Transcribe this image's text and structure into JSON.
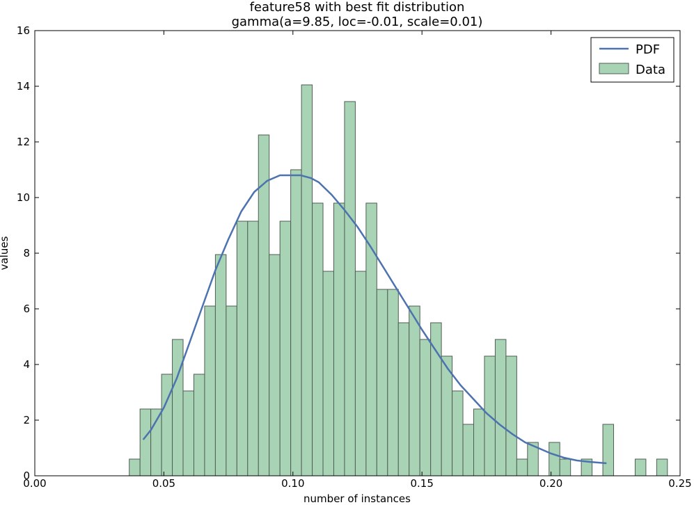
{
  "chart_data": {
    "type": "bar",
    "title": "feature58 with best fit distribution",
    "subtitle": "gamma(a=9.85, loc=-0.01, scale=0.01)",
    "xlabel": "number of instances",
    "ylabel": "values",
    "xlim": [
      0.0,
      0.25
    ],
    "ylim": [
      0,
      16
    ],
    "xticks": [
      0.0,
      0.05,
      0.1,
      0.15,
      0.2,
      0.25
    ],
    "xtick_labels": [
      "0.00",
      "0.05",
      "0.10",
      "0.15",
      "0.20",
      "0.25"
    ],
    "yticks": [
      0,
      2,
      4,
      6,
      8,
      10,
      12,
      14,
      16
    ],
    "ytick_labels": [
      "0",
      "2",
      "4",
      "6",
      "8",
      "10",
      "12",
      "14",
      "16"
    ],
    "grid": false,
    "legend_position": "top-right",
    "histogram": {
      "name": "Data",
      "color": "#a8d3b4",
      "edge_color": "#4f5e55",
      "bin_start": 0.0366,
      "bin_width": 0.00417,
      "counts": [
        0.6,
        2.4,
        2.4,
        3.65,
        4.9,
        3.05,
        3.65,
        6.1,
        7.95,
        6.1,
        9.15,
        9.15,
        12.25,
        7.95,
        9.15,
        11.0,
        14.05,
        9.8,
        7.35,
        9.8,
        13.45,
        7.35,
        9.8,
        6.7,
        6.7,
        5.5,
        6.1,
        4.9,
        5.5,
        4.3,
        3.05,
        1.85,
        2.4,
        4.3,
        4.9,
        4.3,
        0.6,
        1.2,
        0,
        1.2,
        0.6,
        0,
        0.6,
        0,
        1.85,
        0,
        0,
        0.6,
        0,
        0.6
      ]
    },
    "pdf": {
      "name": "PDF",
      "color": "#4c72b0",
      "x": [
        0.042,
        0.045,
        0.05,
        0.055,
        0.06,
        0.065,
        0.07,
        0.075,
        0.08,
        0.085,
        0.09,
        0.095,
        0.1,
        0.103,
        0.107,
        0.11,
        0.115,
        0.12,
        0.125,
        0.13,
        0.135,
        0.14,
        0.145,
        0.15,
        0.155,
        0.16,
        0.165,
        0.17,
        0.175,
        0.18,
        0.185,
        0.19,
        0.195,
        0.2,
        0.205,
        0.21,
        0.215,
        0.2215
      ],
      "y": [
        1.3,
        1.65,
        2.45,
        3.5,
        4.8,
        6.1,
        7.4,
        8.5,
        9.5,
        10.2,
        10.6,
        10.8,
        10.8,
        10.8,
        10.7,
        10.55,
        10.1,
        9.55,
        8.95,
        8.25,
        7.5,
        6.75,
        6.0,
        5.25,
        4.55,
        3.85,
        3.25,
        2.75,
        2.25,
        1.85,
        1.5,
        1.2,
        1.0,
        0.8,
        0.65,
        0.55,
        0.5,
        0.45
      ]
    }
  }
}
